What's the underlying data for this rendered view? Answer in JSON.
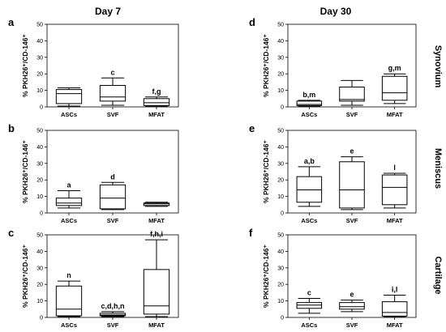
{
  "figure": {
    "titles": {
      "left": "Day 7",
      "right": "Day 30"
    },
    "tissues": [
      "Synovium",
      "Meniscus",
      "Cartilage"
    ]
  },
  "chart_data": [
    {
      "panel": "a",
      "type": "boxplot",
      "ylabel": "% PKH26⁺/CD-146⁺",
      "ylim": [
        0,
        50
      ],
      "yticks": [
        0,
        10,
        20,
        30,
        40,
        50
      ],
      "categories": [
        "ASCs",
        "SVF",
        "MFAT"
      ],
      "boxes": [
        {
          "min": 0.5,
          "q1": 2,
          "median": 8,
          "q3": 10.5,
          "max": 11.5,
          "label": ""
        },
        {
          "min": 1,
          "q1": 3.5,
          "median": 6,
          "q3": 13,
          "max": 17.5,
          "label": "c"
        },
        {
          "min": 0.5,
          "q1": 0.8,
          "median": 2.5,
          "q3": 5,
          "max": 6,
          "label": "f,g"
        }
      ]
    },
    {
      "panel": "b",
      "type": "boxplot",
      "ylabel": "% PKH26⁺/CD-146⁺",
      "ylim": [
        0,
        50
      ],
      "yticks": [
        0,
        10,
        20,
        30,
        40,
        50
      ],
      "categories": [
        "ASCs",
        "SVF",
        "MFAT"
      ],
      "boxes": [
        {
          "min": 3,
          "q1": 4.5,
          "median": 6,
          "q3": 9,
          "max": 13.5,
          "label": "a"
        },
        {
          "min": 2,
          "q1": 2.5,
          "median": 9,
          "q3": 17,
          "max": 18.5,
          "label": "d"
        },
        {
          "min": 4,
          "q1": 4.5,
          "median": 5.5,
          "q3": 6,
          "max": 6.5,
          "label": ""
        }
      ]
    },
    {
      "panel": "c",
      "type": "boxplot",
      "ylabel": "% PKH26⁺/CD-146⁺",
      "ylim": [
        0,
        50
      ],
      "yticks": [
        0,
        10,
        20,
        30,
        40,
        50
      ],
      "categories": [
        "ASCs",
        "SVF",
        "MFAT"
      ],
      "boxes": [
        {
          "min": 0.5,
          "q1": 1,
          "median": 5,
          "q3": 19,
          "max": 22,
          "label": "n"
        },
        {
          "min": 0.5,
          "q1": 1,
          "median": 1.5,
          "q3": 2.5,
          "max": 3.5,
          "label": "c,d,h,n"
        },
        {
          "min": 0.5,
          "q1": 2,
          "median": 7,
          "q3": 29,
          "max": 47,
          "label": "f,h,i"
        }
      ]
    },
    {
      "panel": "d",
      "type": "boxplot",
      "ylabel": "% PKH26⁺/CD-146⁺",
      "ylim": [
        0,
        50
      ],
      "yticks": [
        0,
        10,
        20,
        30,
        40,
        50
      ],
      "categories": [
        "ASCs",
        "SVF",
        "MFAT"
      ],
      "boxes": [
        {
          "min": 0.5,
          "q1": 0.8,
          "median": 1.5,
          "q3": 3.5,
          "max": 4,
          "label": "b,m"
        },
        {
          "min": 1,
          "q1": 3.5,
          "median": 4.5,
          "q3": 12,
          "max": 16,
          "label": ""
        },
        {
          "min": 2,
          "q1": 4,
          "median": 8.5,
          "q3": 18.5,
          "max": 20,
          "label": "g,m"
        }
      ]
    },
    {
      "panel": "e",
      "type": "boxplot",
      "ylabel": "% PKH26⁺/CD-146⁺",
      "ylim": [
        0,
        50
      ],
      "yticks": [
        0,
        10,
        20,
        30,
        40,
        50
      ],
      "categories": [
        "ASCs",
        "SVF",
        "MFAT"
      ],
      "boxes": [
        {
          "min": 4,
          "q1": 6.5,
          "median": 14,
          "q3": 22,
          "max": 28,
          "label": "a,b"
        },
        {
          "min": 2,
          "q1": 3,
          "median": 14,
          "q3": 31,
          "max": 34,
          "label": "e"
        },
        {
          "min": 3,
          "q1": 5,
          "median": 15.5,
          "q3": 23,
          "max": 24,
          "label": "l"
        }
      ]
    },
    {
      "panel": "f",
      "type": "boxplot",
      "ylabel": "% PKH26⁺/CD-146⁺",
      "ylim": [
        0,
        50
      ],
      "yticks": [
        0,
        10,
        20,
        30,
        40,
        50
      ],
      "categories": [
        "ASCs",
        "SVF",
        "MFAT"
      ],
      "boxes": [
        {
          "min": 2.5,
          "q1": 5.5,
          "median": 7.5,
          "q3": 9,
          "max": 11.5,
          "label": "c"
        },
        {
          "min": 3.5,
          "q1": 5,
          "median": 6.5,
          "q3": 9,
          "max": 10.5,
          "label": "e"
        },
        {
          "min": 0.5,
          "q1": 0.8,
          "median": 3,
          "q3": 9.5,
          "max": 13.5,
          "label": "i,l"
        }
      ]
    }
  ]
}
